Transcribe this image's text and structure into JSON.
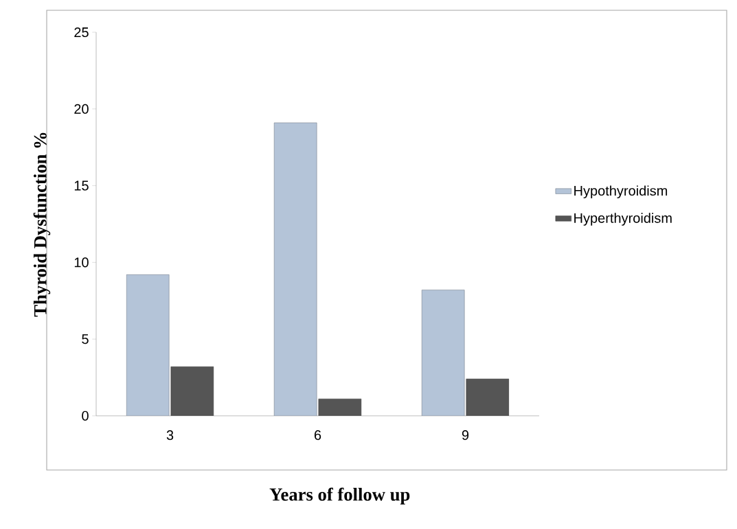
{
  "chart_data": {
    "type": "bar",
    "xlabel": "Years of follow up",
    "ylabel": "Thyroid Dysfunction %",
    "categories": [
      "3",
      "6",
      "9"
    ],
    "series": [
      {
        "name": "Hypothyroidism",
        "color": "#b4c4d8",
        "values": [
          9.2,
          19.1,
          8.2
        ]
      },
      {
        "name": "Hyperthyroidism",
        "color": "#555555",
        "values": [
          3.2,
          1.1,
          2.4
        ]
      }
    ],
    "ylim": [
      0,
      25
    ],
    "yticks": [
      0,
      5,
      10,
      15,
      20,
      25
    ],
    "grid": false,
    "legend": "right"
  }
}
